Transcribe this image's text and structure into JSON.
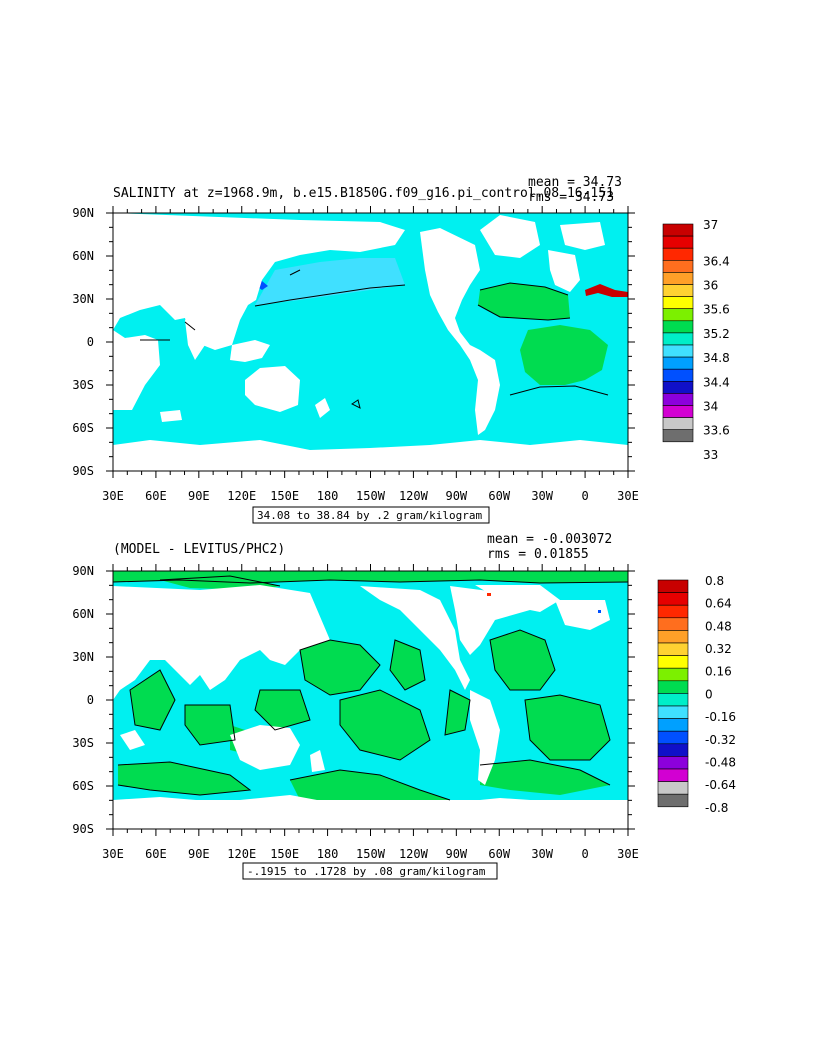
{
  "chart_data": [
    {
      "type": "heatmap",
      "title": "SALINITY at z=1968.9m, b.e15.B1850G.f09_g16.pi_control.08 16-151",
      "stats": {
        "mean": "mean = 34.73",
        "rms": "rms = 34.73"
      },
      "xlabel": "",
      "ylabel": "",
      "x_ticks": [
        "30E",
        "60E",
        "90E",
        "120E",
        "150E",
        "180",
        "150W",
        "120W",
        "90W",
        "60W",
        "30W",
        "0",
        "30E"
      ],
      "y_ticks": [
        "90N",
        "60N",
        "30N",
        "0",
        "30S",
        "60S",
        "90S"
      ],
      "contour_info": "34.08 to 38.84 by .2 gram/kilogram",
      "colorbar": {
        "labels": [
          "37",
          "36.4",
          "36",
          "35.6",
          "35.2",
          "34.8",
          "34.4",
          "34",
          "33.6",
          "33"
        ],
        "colors": [
          "#c80000",
          "#e60000",
          "#ff2800",
          "#ff6e1e",
          "#ffa028",
          "#ffd232",
          "#ffff00",
          "#7cf000",
          "#00dc50",
          "#00eec8",
          "#40e0ff",
          "#00a0ff",
          "#0050ff",
          "#1010c8",
          "#8c00dc",
          "#d200d2",
          "#c8c8c8",
          "#6e6e6e"
        ]
      }
    },
    {
      "type": "heatmap",
      "title": "(MODEL - LEVITUS/PHC2)",
      "stats": {
        "mean": "mean = -0.003072",
        "rms": "rms = 0.01855"
      },
      "xlabel": "",
      "ylabel": "",
      "x_ticks": [
        "30E",
        "60E",
        "90E",
        "120E",
        "150E",
        "180",
        "150W",
        "120W",
        "90W",
        "60W",
        "30W",
        "0",
        "30E"
      ],
      "y_ticks": [
        "90N",
        "60N",
        "30N",
        "0",
        "30S",
        "60S",
        "90S"
      ],
      "contour_info": "-.1915 to .1728 by .08 gram/kilogram",
      "colorbar": {
        "labels": [
          "0.8",
          "0.64",
          "0.48",
          "0.32",
          "0.16",
          "0",
          "-0.16",
          "-0.32",
          "-0.48",
          "-0.64",
          "-0.8"
        ],
        "colors": [
          "#c80000",
          "#e60000",
          "#ff2800",
          "#ff6e1e",
          "#ffa028",
          "#ffd232",
          "#ffff00",
          "#7cf000",
          "#00dc50",
          "#00eec8",
          "#40e0ff",
          "#00a0ff",
          "#0050ff",
          "#1010c8",
          "#8c00dc",
          "#d200d2",
          "#c8c8c8",
          "#6e6e6e"
        ]
      }
    }
  ]
}
